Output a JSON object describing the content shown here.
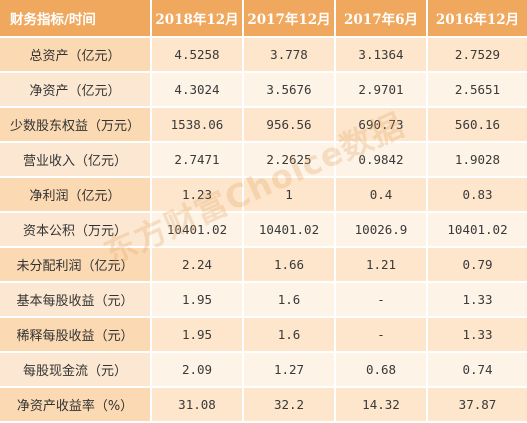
{
  "table": {
    "header_label": "财务指标/时间",
    "periods": [
      "2018年12月",
      "2017年12月",
      "2017年6月",
      "2016年12月"
    ],
    "rows": [
      {
        "label": "总资产（亿元）",
        "values": [
          "4.5258",
          "3.778",
          "3.1364",
          "2.7529"
        ]
      },
      {
        "label": "净资产（亿元）",
        "values": [
          "4.3024",
          "3.5676",
          "2.9701",
          "2.5651"
        ]
      },
      {
        "label": "少数股东权益（万元）",
        "values": [
          "1538.06",
          "956.56",
          "690.73",
          "560.16"
        ]
      },
      {
        "label": "营业收入（亿元）",
        "values": [
          "2.7471",
          "2.2625",
          "0.9842",
          "1.9028"
        ]
      },
      {
        "label": "净利润（亿元）",
        "values": [
          "1.23",
          "1",
          "0.4",
          "0.83"
        ]
      },
      {
        "label": "资本公积（万元）",
        "values": [
          "10401.02",
          "10401.02",
          "10026.9",
          "10401.02"
        ]
      },
      {
        "label": "未分配利润（亿元）",
        "values": [
          "2.24",
          "1.66",
          "1.21",
          "0.79"
        ]
      },
      {
        "label": "基本每股收益（元）",
        "values": [
          "1.95",
          "1.6",
          "-",
          "1.33"
        ]
      },
      {
        "label": "稀释每股收益（元）",
        "values": [
          "1.95",
          "1.6",
          "-",
          "1.33"
        ]
      },
      {
        "label": "每股现金流（元）",
        "values": [
          "2.09",
          "1.27",
          "0.68",
          "0.74"
        ]
      },
      {
        "label": "净资产收益率（%）",
        "values": [
          "31.08",
          "32.2",
          "14.32",
          "37.87"
        ]
      }
    ]
  },
  "watermark": "东方财富Choice数据",
  "colors": {
    "header_bg": "#f0a85e",
    "row_odd": "#fde6cc",
    "row_even": "#fdf3e6",
    "text": "#3a3a3a"
  }
}
